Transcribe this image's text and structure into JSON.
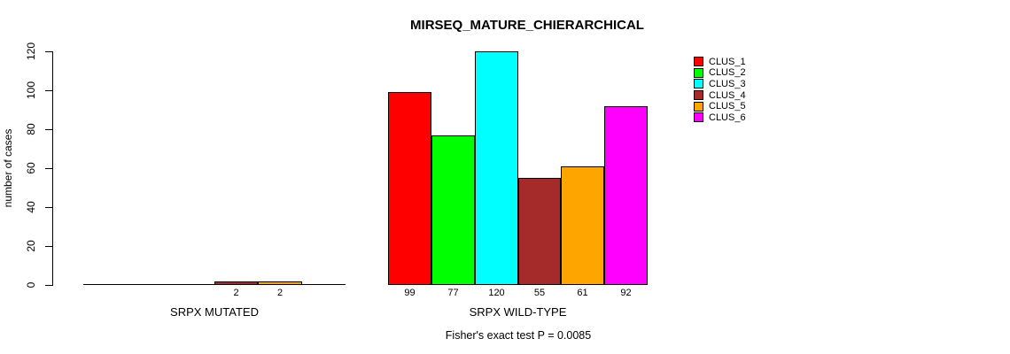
{
  "chart_data": {
    "type": "bar",
    "title": "MIRSEQ_MATURE_CHIERARCHICAL",
    "ylabel": "number of cases",
    "xlabel": "",
    "ylim": [
      0,
      120
    ],
    "yticks": [
      0,
      20,
      40,
      60,
      80,
      100,
      120
    ],
    "grid": false,
    "legend_position": "right-outside",
    "series_labels": [
      "CLUS_1",
      "CLUS_2",
      "CLUS_3",
      "CLUS_4",
      "CLUS_5",
      "CLUS_6"
    ],
    "colors": [
      "#FF0000",
      "#00FF00",
      "#00FFFF",
      "#A52A2A",
      "#FFA500",
      "#FF00FF"
    ],
    "groups": [
      {
        "label": "SRPX MUTATED",
        "values": [
          0,
          0,
          0,
          2,
          2,
          0
        ]
      },
      {
        "label": "SRPX WILD-TYPE",
        "values": [
          99,
          77,
          120,
          55,
          61,
          92
        ]
      }
    ],
    "value_labels_shown": "nonzero-only",
    "annotation": "Fisher's exact test P = 0.0085"
  }
}
